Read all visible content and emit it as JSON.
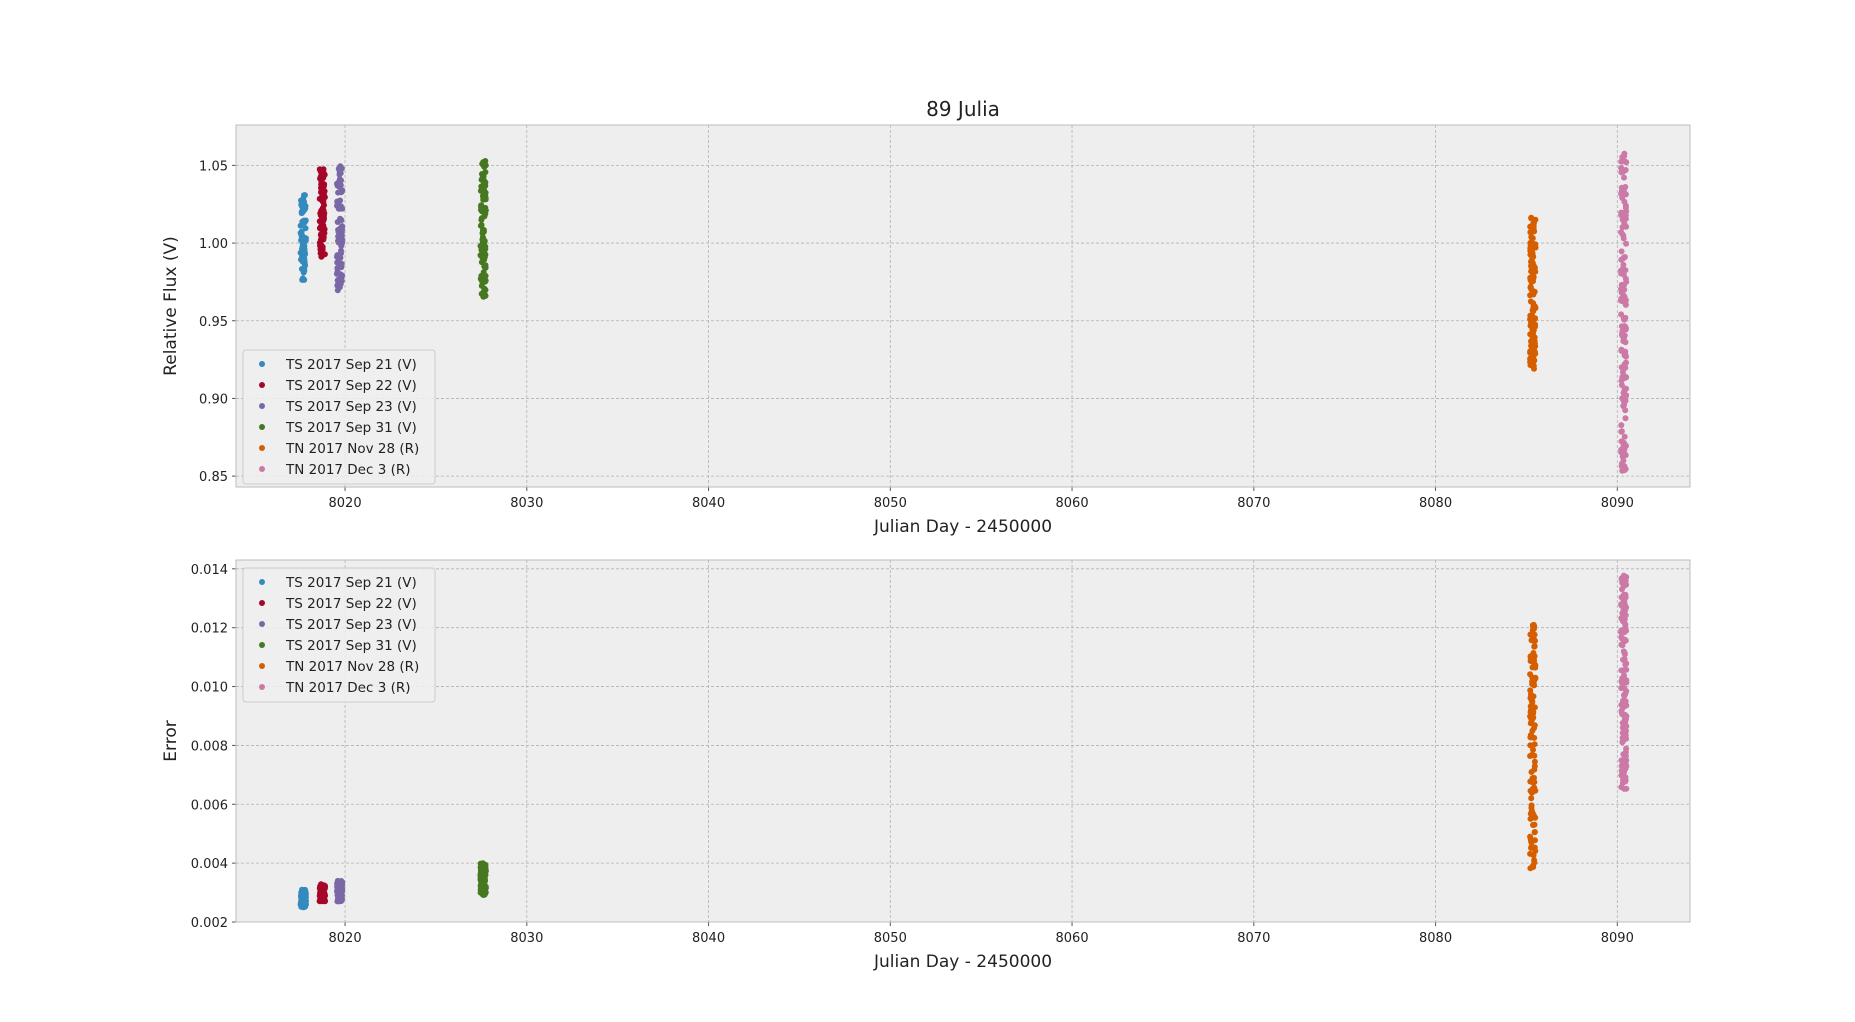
{
  "figure_title": "89 Julia",
  "colors": {
    "series": [
      "#348ABD",
      "#A60628",
      "#7A68A6",
      "#467821",
      "#D55E00",
      "#CC79A7"
    ],
    "axes_bg": "#EEEEEE",
    "grid": "#B2B2B2",
    "spine": "#BCBCBC"
  },
  "chart_data": [
    {
      "type": "scatter",
      "title": "89 Julia",
      "xlabel": "Julian Day  - 2450000",
      "ylabel": "Relative Flux (V)",
      "xlim": [
        8014,
        8094
      ],
      "ylim": [
        0.843,
        1.076
      ],
      "xticks": [
        8020,
        8030,
        8040,
        8050,
        8060,
        8070,
        8080,
        8090
      ],
      "yticks": [
        0.85,
        0.9,
        0.95,
        1.0,
        1.05
      ],
      "ytick_labels": [
        "0.85",
        "0.90",
        "0.95",
        "1.00",
        "1.05"
      ],
      "grid": true,
      "legend_position": "lower-left",
      "series": [
        {
          "name": "TS 2017 Sep 21  (V)",
          "x_range": [
            8017.55,
            8017.85
          ],
          "y_range": [
            0.976,
            1.031
          ],
          "count": 80
        },
        {
          "name": "TS 2017 Sep 22  (V)",
          "x_range": [
            8018.6,
            8018.9
          ],
          "y_range": [
            0.991,
            1.048
          ],
          "count": 80
        },
        {
          "name": "TS 2017 Sep 23  (V)",
          "x_range": [
            8019.55,
            8019.85
          ],
          "y_range": [
            0.969,
            1.051
          ],
          "count": 80
        },
        {
          "name": "TS 2017 Sep 31  (V)",
          "x_range": [
            8027.45,
            8027.75
          ],
          "y_range": [
            0.965,
            1.053
          ],
          "count": 110
        },
        {
          "name": "TN 2017 Nov 28  (R)",
          "x_range": [
            8085.2,
            8085.5
          ],
          "y_range": [
            0.919,
            1.019
          ],
          "count": 130
        },
        {
          "name": "TN 2017 Dec 3  (R)",
          "x_range": [
            8090.2,
            8090.5
          ],
          "y_range": [
            0.853,
            1.064
          ],
          "count": 150
        }
      ]
    },
    {
      "type": "scatter",
      "title": "",
      "xlabel": "Julian Day - 2450000",
      "ylabel": "Error",
      "xlim": [
        8014,
        8094
      ],
      "ylim": [
        0.002,
        0.0143
      ],
      "xticks": [
        8020,
        8030,
        8040,
        8050,
        8060,
        8070,
        8080,
        8090
      ],
      "yticks": [
        0.002,
        0.004,
        0.006,
        0.008,
        0.01,
        0.012,
        0.014
      ],
      "ytick_labels": [
        "0.002",
        "0.004",
        "0.006",
        "0.008",
        "0.010",
        "0.012",
        "0.014"
      ],
      "grid": true,
      "legend_position": "upper-left",
      "series": [
        {
          "name": "TS 2017 Sep 21  (V)",
          "x_range": [
            8017.55,
            8017.85
          ],
          "y_range": [
            0.0025,
            0.0031
          ],
          "count": 80
        },
        {
          "name": "TS 2017 Sep 22  (V)",
          "x_range": [
            8018.6,
            8018.9
          ],
          "y_range": [
            0.0027,
            0.0033
          ],
          "count": 80
        },
        {
          "name": "TS 2017 Sep 23  (V)",
          "x_range": [
            8019.55,
            8019.85
          ],
          "y_range": [
            0.0027,
            0.0034
          ],
          "count": 80
        },
        {
          "name": "TS 2017 Sep 31  (V)",
          "x_range": [
            8027.45,
            8027.75
          ],
          "y_range": [
            0.0029,
            0.004
          ],
          "count": 110
        },
        {
          "name": "TN 2017 Nov 28  (R)",
          "x_range": [
            8085.2,
            8085.5
          ],
          "y_range": [
            0.0038,
            0.0121
          ],
          "count": 130
        },
        {
          "name": "TN 2017 Dec 3  (R)",
          "x_range": [
            8090.2,
            8090.5
          ],
          "y_range": [
            0.0065,
            0.0138
          ],
          "count": 150
        }
      ]
    }
  ]
}
